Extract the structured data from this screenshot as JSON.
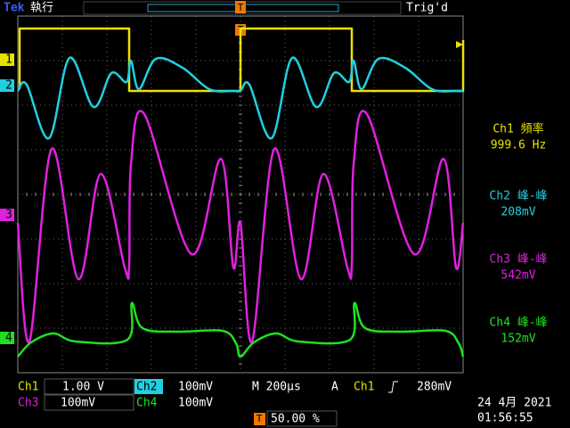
{
  "header": {
    "brand": "Tek",
    "status": "執行",
    "trigger_state": "Trig'd",
    "trigger_marker": "T"
  },
  "channel_markers": [
    "1",
    "2",
    "3",
    "4"
  ],
  "measurements": [
    {
      "label": "Ch1 頻率",
      "value": "999.6 Hz"
    },
    {
      "label": "Ch2 峰-峰",
      "value": "208mV"
    },
    {
      "label": "Ch3 峰-峰",
      "value": "542mV"
    },
    {
      "label": "Ch4 峰-峰",
      "value": "152mV"
    }
  ],
  "settings": {
    "ch1": {
      "name": "Ch1",
      "scale": "1.00 V"
    },
    "ch2": {
      "name": "Ch2",
      "scale": "100mV"
    },
    "ch3": {
      "name": "Ch3",
      "scale": "100mV"
    },
    "ch4": {
      "name": "Ch4",
      "scale": "100mV"
    },
    "timebase": "M 200µs",
    "trigger_mode": "A",
    "trigger_source": "Ch1",
    "trigger_level": "280mV",
    "trigger_position_marker": "T",
    "trigger_position": "50.00 %",
    "date": "24 4月 2021",
    "time": "01:56:55"
  }
}
